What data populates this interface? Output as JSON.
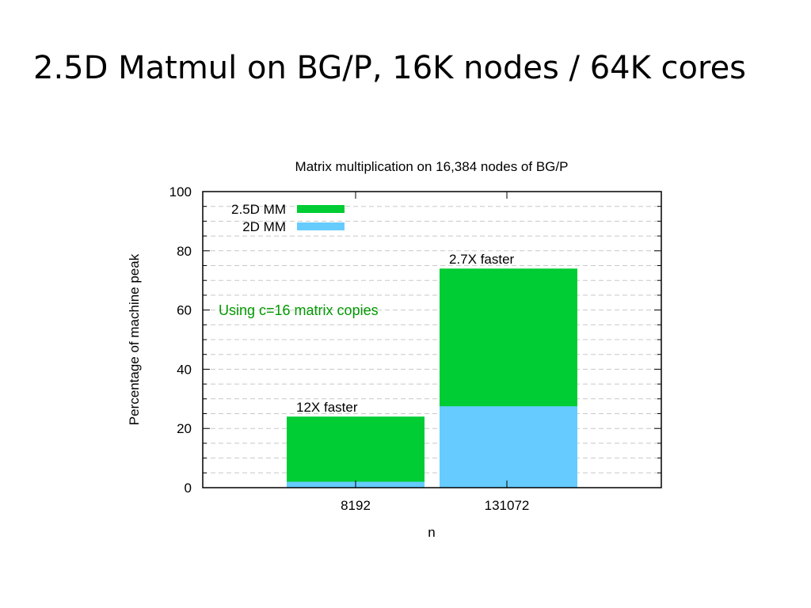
{
  "slide": {
    "title": "2.5D Matmul on BG/P, 16K nodes / 64K cores"
  },
  "chart_data": {
    "type": "bar",
    "stacked": true,
    "title": "Matrix multiplication on 16,384 nodes of BG/P",
    "xlabel": "n",
    "ylabel": "Percentage of machine peak",
    "categories": [
      "8192",
      "131072"
    ],
    "series": [
      {
        "name": "2D MM",
        "values": [
          2,
          27.5
        ],
        "color": "#66ccff"
      },
      {
        "name": "2.5D MM",
        "values": [
          24,
          74
        ],
        "color": "#00cc33"
      }
    ],
    "stack_note": "2.5D MM bar drawn behind 2D MM bar; values are bar tops",
    "ylim": [
      0,
      100
    ],
    "yticks": [
      0,
      20,
      40,
      60,
      80,
      100
    ],
    "grid": true,
    "legend_position": "top-left",
    "annotations": [
      {
        "text": "12X faster",
        "category": "8192"
      },
      {
        "text": "2.7X faster",
        "category": "131072"
      },
      {
        "text": "Using c=16 matrix copies",
        "color": "#009900"
      }
    ]
  }
}
